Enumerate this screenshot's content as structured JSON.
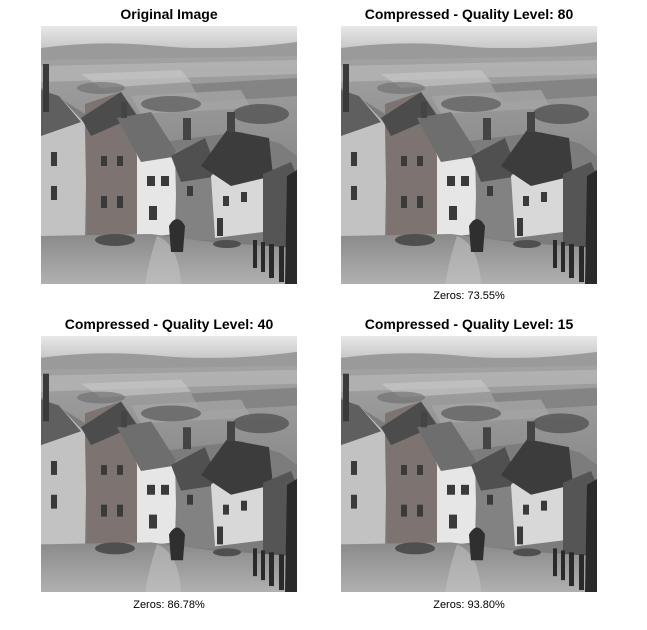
{
  "panels": [
    {
      "title": "Original Image",
      "caption": ""
    },
    {
      "title": "Compressed - Quality Level: 80",
      "caption": "Zeros: 73.55%"
    },
    {
      "title": "Compressed - Quality Level: 40",
      "caption": "Zeros: 86.78%"
    },
    {
      "title": "Compressed - Quality Level: 15",
      "caption": "Zeros: 93.80%"
    }
  ]
}
